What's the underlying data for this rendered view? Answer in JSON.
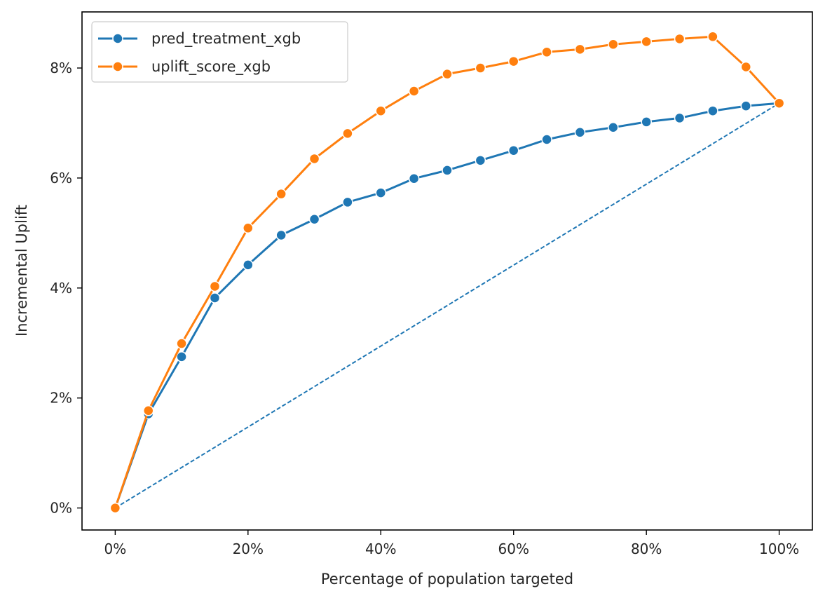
{
  "chart_data": {
    "type": "line",
    "title": "",
    "xlabel": "Percentage of population targeted",
    "ylabel": "Incremental Uplift",
    "xlim": [
      -0.05,
      1.05
    ],
    "ylim": [
      -0.004,
      0.0902
    ],
    "x_ticks": [
      0,
      0.2,
      0.4,
      0.6,
      0.8,
      1.0
    ],
    "x_tick_labels": [
      "0%",
      "20%",
      "40%",
      "60%",
      "80%",
      "100%"
    ],
    "y_ticks": [
      0,
      0.02,
      0.04,
      0.06,
      0.08
    ],
    "y_tick_labels": [
      "0%",
      "2%",
      "4%",
      "6%",
      "8%"
    ],
    "grid": false,
    "legend_position": "top-left",
    "x": [
      0,
      0.05,
      0.1,
      0.15,
      0.2,
      0.25,
      0.3,
      0.35,
      0.4,
      0.45,
      0.5,
      0.55,
      0.6,
      0.65,
      0.7,
      0.75,
      0.8,
      0.85,
      0.9,
      0.95,
      1.0
    ],
    "series": [
      {
        "name": "pred_treatment_xgb",
        "color": "#1f77b4",
        "values": [
          0,
          0.0171,
          0.0275,
          0.0382,
          0.0442,
          0.0496,
          0.0525,
          0.0556,
          0.0573,
          0.0599,
          0.0614,
          0.0632,
          0.065,
          0.067,
          0.0683,
          0.0692,
          0.0702,
          0.0709,
          0.0722,
          0.0731,
          0.0736
        ]
      },
      {
        "name": "uplift_score_xgb",
        "color": "#ff7f0e",
        "values": [
          0,
          0.0177,
          0.0299,
          0.0403,
          0.0509,
          0.0571,
          0.0635,
          0.0681,
          0.0722,
          0.0758,
          0.0789,
          0.08,
          0.0812,
          0.0829,
          0.0834,
          0.0843,
          0.0848,
          0.0853,
          0.0857,
          0.0802,
          0.0736
        ]
      }
    ],
    "baseline": {
      "x": [
        0,
        1.0
      ],
      "values": [
        0,
        0.0736
      ],
      "color": "#1f77b4",
      "style": "dashed"
    }
  }
}
